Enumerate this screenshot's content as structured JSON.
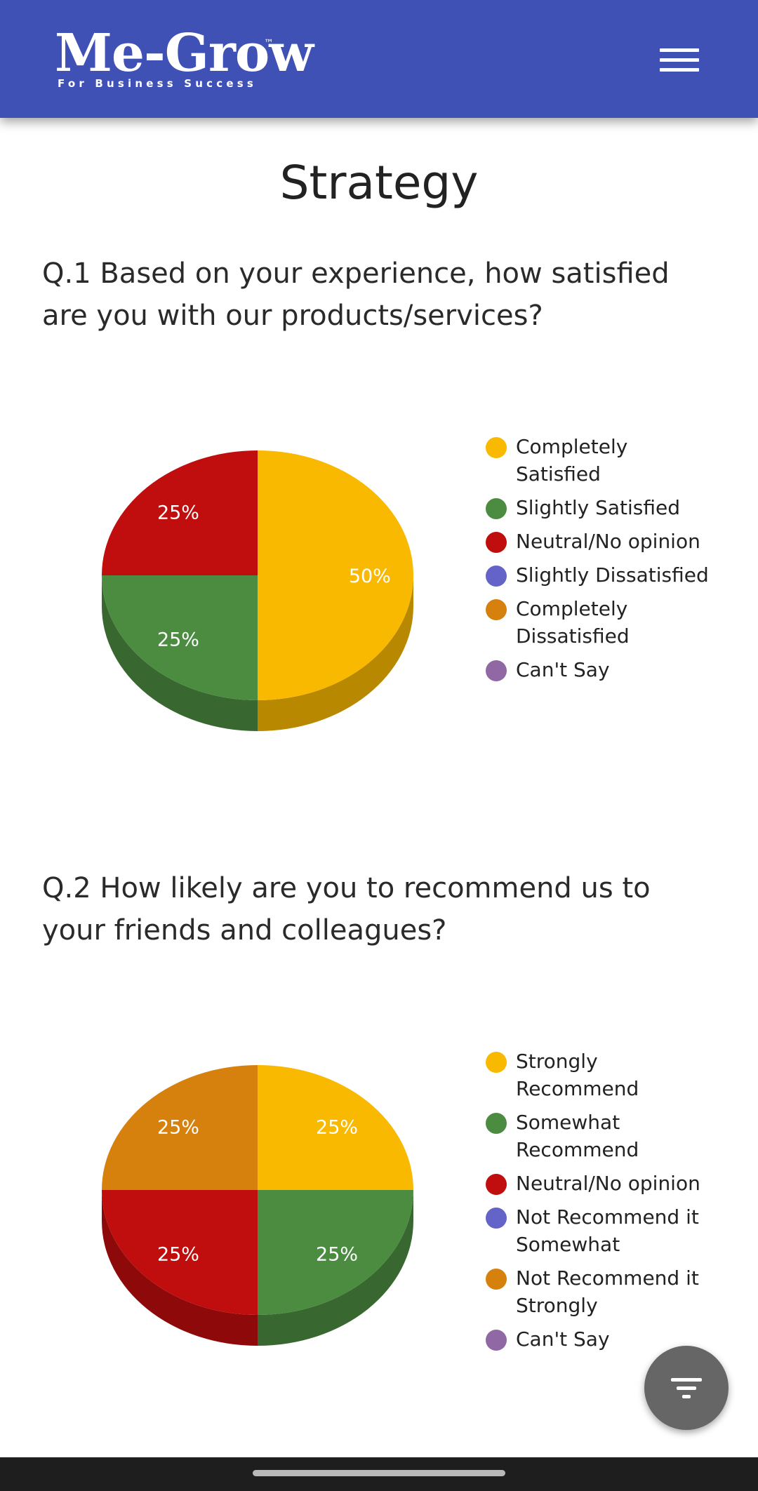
{
  "header": {
    "logo_main": "Me-Grow",
    "logo_tm": "™",
    "logo_tagline": "For Business Success",
    "menu_icon": "hamburger-icon"
  },
  "page": {
    "title": "Strategy"
  },
  "colors": {
    "header_bg": "#3f51b5",
    "yellow": "#f9b900",
    "green": "#4c8c41",
    "red": "#c00d0d",
    "blue": "#6464c8",
    "orange": "#d6800e",
    "purple": "#8f68a4"
  },
  "chart_data": [
    {
      "type": "pie",
      "title": "Q.1 Based on your experience, how satisfied are you with our products/services?",
      "categories": [
        "Completely Satisfied",
        "Slightly Satisfied",
        "Neutral/No opinion",
        "Slightly Dissatisfied",
        "Completely Dissatisfied",
        "Can't Say"
      ],
      "values": [
        50,
        25,
        25,
        0,
        0,
        0
      ],
      "unit": "%",
      "colors": [
        "#f9b900",
        "#4c8c41",
        "#c00d0d",
        "#6464c8",
        "#d6800e",
        "#8f68a4"
      ],
      "legend_position": "right",
      "style": "3d"
    },
    {
      "type": "pie",
      "title": "Q.2 How likely are you to recommend us to your friends and colleagues?",
      "categories": [
        "Strongly Recommend",
        "Somewhat Recommend",
        "Neutral/No opinion",
        "Not Recommend it Somewhat",
        "Not Recommend it Strongly",
        "Can't Say"
      ],
      "values": [
        25,
        25,
        25,
        0,
        25,
        0
      ],
      "unit": "%",
      "colors": [
        "#f9b900",
        "#4c8c41",
        "#c00d0d",
        "#6464c8",
        "#d6800e",
        "#8f68a4"
      ],
      "legend_position": "right",
      "style": "3d"
    }
  ],
  "fab": {
    "icon": "filter-icon"
  }
}
